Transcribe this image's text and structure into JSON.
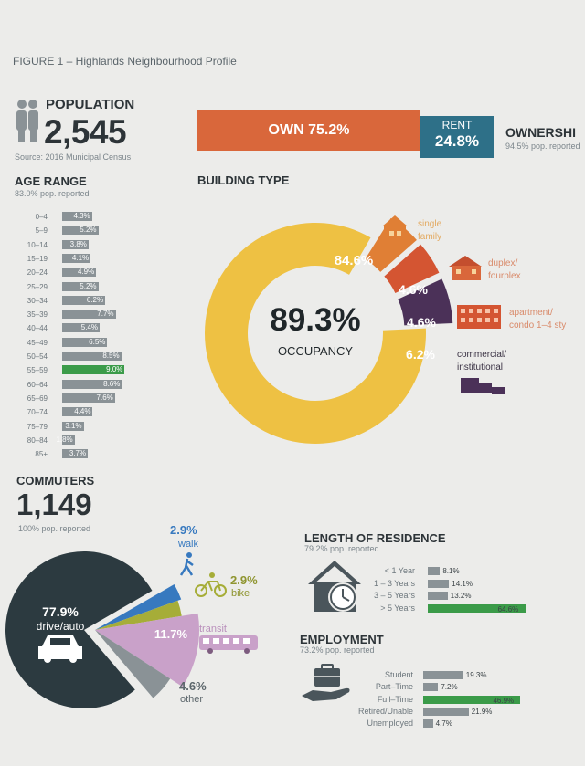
{
  "figure_title": "FIGURE 1 – Highlands Neighbourhood Profile",
  "population": {
    "label": "POPULATION",
    "value": "2,545",
    "source": "Source: 2016 Municipal Census"
  },
  "ownership": {
    "title": "OWNERSHI",
    "note": "94.5% pop. reported",
    "own_label": "OWN 75.2%",
    "rent_label": "RENT",
    "rent_value": "24.8%",
    "colors": {
      "own": "#d9673b",
      "rent": "#2e7088"
    }
  },
  "age_range": {
    "title": "AGE RANGE",
    "note": "83.0% pop. reported"
  },
  "building_type": {
    "title": "BUILDING TYPE",
    "center_value": "89.3%",
    "center_label": "OCCUPANCY",
    "segments": [
      {
        "label": "single family",
        "value": "84.6%",
        "icon": "house-icon",
        "color": "#eec143"
      },
      {
        "label": "duplex/ fourplex",
        "value": "4.6%",
        "icon": "duplex-icon",
        "color": "#e07f35"
      },
      {
        "label": "apartment/ condo 1–4 sty",
        "value": "4.6%",
        "icon": "apartment-icon",
        "color": "#d45532"
      },
      {
        "label": "commercial/ institutional",
        "value": "6.2%",
        "icon": "commercial-icon",
        "color": "#4b3158"
      }
    ]
  },
  "commuters": {
    "title": "COMMUTERS",
    "value": "1,149",
    "note": "100% pop. reported",
    "drive_value": "77.9%",
    "drive_label": "drive/auto",
    "walk_value": "2.9%",
    "walk_label": "walk",
    "bike_value": "2.9%",
    "bike_label": "bike",
    "transit_value": "11.7%",
    "transit_label": "transit",
    "other_value": "4.6%",
    "other_label": "other"
  },
  "residence": {
    "title": "LENGTH OF RESIDENCE",
    "note": "79.2% pop. reported"
  },
  "employment": {
    "title": "EMPLOYMENT",
    "note": "73.2% pop. reported"
  },
  "chart_data": [
    {
      "type": "bar",
      "title": "AGE RANGE",
      "categories": [
        "0–4",
        "5–9",
        "10–14",
        "15–19",
        "20–24",
        "25–29",
        "30–34",
        "35–39",
        "40–44",
        "45–49",
        "50–54",
        "55–59",
        "60–64",
        "65–69",
        "70–74",
        "75–79",
        "80–84",
        "85+"
      ],
      "values": [
        4.3,
        5.2,
        3.8,
        4.1,
        4.9,
        5.2,
        6.2,
        7.7,
        5.4,
        6.5,
        8.5,
        9.0,
        8.6,
        7.6,
        4.4,
        3.1,
        1.8,
        3.7
      ],
      "labels": [
        "4.3%",
        "5.2%",
        "3.8%",
        "4.1%",
        "4.9%",
        "5.2%",
        "6.2%",
        "7.7%",
        "5.4%",
        "6.5%",
        "8.5%",
        "9.0%",
        "8.6%",
        "7.6%",
        "4.4%",
        "3.1%",
        "1.8%",
        "3.7%"
      ],
      "highlight_index": 11
    },
    {
      "type": "pie",
      "title": "BUILDING TYPE",
      "categories": [
        "single family",
        "duplex/ fourplex",
        "apartment/ condo 1–4 sty",
        "commercial/ institutional"
      ],
      "values": [
        84.6,
        4.6,
        4.6,
        6.2
      ]
    },
    {
      "type": "pie",
      "title": "COMMUTERS",
      "categories": [
        "drive/auto",
        "walk",
        "bike",
        "transit",
        "other"
      ],
      "values": [
        77.9,
        2.9,
        2.9,
        11.7,
        4.6
      ],
      "colors": [
        "#2c3a40",
        "#3779bf",
        "#a6ad38",
        "#c9a1c9",
        "#8a9296"
      ]
    },
    {
      "type": "bar",
      "title": "LENGTH OF RESIDENCE",
      "categories": [
        "< 1 Year",
        "1 – 3 Years",
        "3 – 5 Years",
        "> 5 Years"
      ],
      "values": [
        8.1,
        14.1,
        13.2,
        64.6
      ],
      "labels": [
        "8.1%",
        "14.1%",
        "13.2%",
        "64.6%"
      ],
      "highlight_index": 3
    },
    {
      "type": "bar",
      "title": "EMPLOYMENT",
      "categories": [
        "Student",
        "Part–Time",
        "Full–Time",
        "Retired/Unable",
        "Unemployed"
      ],
      "values": [
        19.3,
        7.2,
        46.9,
        21.9,
        4.7
      ],
      "labels": [
        "19.3%",
        "7.2%",
        "46.9%",
        "21.9%",
        "4.7%"
      ],
      "highlight_index": 2
    }
  ]
}
